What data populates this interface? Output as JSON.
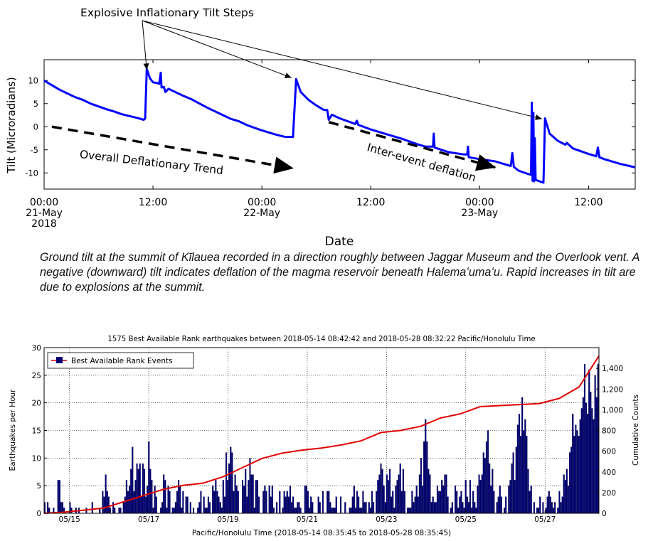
{
  "chart_data": [
    {
      "type": "line",
      "title": "",
      "xlabel": "Date",
      "ylabel": "Tilt (Microradians)",
      "ylim": [
        -13.5,
        14.5
      ],
      "yticks": [
        10,
        5,
        0,
        -5,
        -10
      ],
      "x_unit": "hours since 2018-05-21 00:00",
      "xlim": [
        0,
        38
      ],
      "xtick_labels": [
        {
          "x": 0,
          "lines": [
            "00:00",
            "21-May",
            "2018"
          ]
        },
        {
          "x": 7,
          "lines": [
            "12:00"
          ]
        },
        {
          "x": 14,
          "lines": [
            "00:00",
            "22-May"
          ]
        },
        {
          "x": 21,
          "lines": [
            "12:00"
          ]
        },
        {
          "x": 28,
          "lines": [
            "00:00",
            "23-May"
          ]
        },
        {
          "x": 35,
          "lines": [
            "12:00"
          ]
        }
      ],
      "series": [
        {
          "color": "#0000ff",
          "points": [
            [
              0.0,
              10.0
            ],
            [
              0.5,
              9.0
            ],
            [
              1.0,
              8.0
            ],
            [
              1.5,
              7.2
            ],
            [
              2.0,
              6.4
            ],
            [
              2.5,
              5.8
            ],
            [
              3.0,
              5.0
            ],
            [
              3.5,
              4.4
            ],
            [
              4.0,
              3.8
            ],
            [
              4.5,
              3.3
            ],
            [
              5.0,
              2.7
            ],
            [
              5.5,
              2.3
            ],
            [
              6.0,
              1.9
            ],
            [
              6.4,
              1.5
            ],
            [
              6.5,
              1.8
            ],
            [
              6.6,
              12.5
            ],
            [
              6.8,
              10.5
            ],
            [
              7.0,
              9.6
            ],
            [
              7.2,
              9.5
            ],
            [
              7.4,
              9.3
            ],
            [
              7.5,
              11.7
            ],
            [
              7.55,
              8.5
            ],
            [
              7.7,
              8.6
            ],
            [
              7.8,
              7.5
            ],
            [
              8.0,
              8.2
            ],
            [
              8.5,
              7.4
            ],
            [
              9.0,
              6.6
            ],
            [
              9.5,
              5.9
            ],
            [
              10.0,
              5.0
            ],
            [
              10.5,
              4.1
            ],
            [
              11.0,
              3.3
            ],
            [
              11.5,
              2.5
            ],
            [
              12.0,
              1.7
            ],
            [
              12.5,
              1.2
            ],
            [
              13.0,
              0.4
            ],
            [
              13.5,
              -0.2
            ],
            [
              14.0,
              -0.8
            ],
            [
              14.5,
              -1.3
            ],
            [
              15.0,
              -1.8
            ],
            [
              15.5,
              -2.2
            ],
            [
              16.0,
              -2.2
            ],
            [
              16.2,
              10.3
            ],
            [
              16.5,
              7.5
            ],
            [
              17.0,
              5.8
            ],
            [
              17.5,
              4.6
            ],
            [
              18.0,
              3.6
            ],
            [
              18.2,
              3.6
            ],
            [
              18.3,
              1.5
            ],
            [
              18.5,
              2.6
            ],
            [
              19.0,
              1.8
            ],
            [
              19.5,
              1.2
            ],
            [
              20.0,
              0.6
            ],
            [
              20.1,
              1.3
            ],
            [
              20.2,
              0.4
            ],
            [
              21.0,
              -0.6
            ],
            [
              22.0,
              -1.6
            ],
            [
              23.0,
              -2.6
            ],
            [
              24.0,
              -3.8
            ],
            [
              24.5,
              -4.3
            ],
            [
              25.0,
              -4.3
            ],
            [
              25.05,
              -1.5
            ],
            [
              25.1,
              -4.5
            ],
            [
              26.0,
              -5.5
            ],
            [
              27.0,
              -6.0
            ],
            [
              27.2,
              -6.0
            ],
            [
              27.25,
              -4.3
            ],
            [
              27.3,
              -6.6
            ],
            [
              28.0,
              -7.0
            ],
            [
              29.0,
              -7.5
            ],
            [
              29.5,
              -8.0
            ],
            [
              30.0,
              -8.5
            ],
            [
              30.1,
              -5.7
            ],
            [
              30.2,
              -8.7
            ],
            [
              30.5,
              -9.5
            ],
            [
              31.0,
              -10.1
            ],
            [
              31.3,
              -10.4
            ],
            [
              31.35,
              5.2
            ],
            [
              31.4,
              -11.7
            ],
            [
              31.45,
              3.0
            ],
            [
              31.5,
              -11.8
            ],
            [
              31.55,
              -2.5
            ],
            [
              31.6,
              -11.5
            ],
            [
              32.0,
              -12.0
            ],
            [
              32.1,
              -12.1
            ],
            [
              32.2,
              1.8
            ],
            [
              32.5,
              -1.5
            ],
            [
              33.0,
              -3.0
            ],
            [
              33.5,
              -3.9
            ],
            [
              33.6,
              -3.5
            ],
            [
              34.0,
              -4.7
            ],
            [
              35.0,
              -5.9
            ],
            [
              35.5,
              -6.4
            ],
            [
              35.6,
              -4.5
            ],
            [
              35.7,
              -6.6
            ],
            [
              36.0,
              -7.0
            ],
            [
              37.0,
              -8.0
            ],
            [
              38.0,
              -8.8
            ]
          ]
        }
      ],
      "annotations": [
        {
          "text": "Explosive Inflationary Tilt Steps",
          "targets": [
            [
              6.6,
              12.3
            ],
            [
              15.9,
              10.6
            ],
            [
              32.0,
              1.7
            ]
          ]
        },
        {
          "text": "Overall Deflationary Trend",
          "arrow_from": [
            0.5,
            0.0
          ],
          "arrow_to": [
            16.0,
            -9.0
          ],
          "angle": 6.5
        },
        {
          "text": "Inter-event deflation",
          "arrow_from": [
            18.3,
            1.0
          ],
          "arrow_to": [
            29.0,
            -8.8
          ],
          "angle": 16
        }
      ]
    },
    {
      "type": "bar",
      "title": "1575 Best Available Rank earthquakes between 2018-05-14 08:42:42 and 2018-05-28 08:32:22 Pacific/Honolulu Time",
      "xlabel": "Pacific/Honolulu Time (2018-05-14 08:35:45 to 2018-05-28 08:35:45)",
      "ylabel": "Earthquakes per Hour",
      "y2label": "Cumulative Counts",
      "ylim": [
        0,
        30
      ],
      "yticks": [
        0,
        5,
        10,
        15,
        20,
        25,
        30
      ],
      "y2lim": [
        0,
        1600
      ],
      "y2ticks": [
        0,
        200,
        400,
        600,
        800,
        1000,
        1200,
        1400
      ],
      "y2tick_labels": [
        "0",
        "200",
        "400",
        "600",
        "800",
        "1,000",
        "1,200",
        "1,400"
      ],
      "x_unit": "days since 2018-05-14 08:35:45",
      "xlim": [
        0,
        14
      ],
      "xtick_labels": [
        {
          "x": 0.64,
          "label": "05/15"
        },
        {
          "x": 2.64,
          "label": "05/17"
        },
        {
          "x": 4.64,
          "label": "05/19"
        },
        {
          "x": 6.64,
          "label": "05/21"
        },
        {
          "x": 8.64,
          "label": "05/23"
        },
        {
          "x": 10.64,
          "label": "05/25"
        },
        {
          "x": 12.64,
          "label": "05/27"
        }
      ],
      "grid": true,
      "legend": {
        "position": "top-left",
        "label": "Best Available Rank Events"
      },
      "series": [
        {
          "name": "Best Available Rank Events",
          "color": "#000070",
          "kind": "bar"
        },
        {
          "name": "Cumulative Counts",
          "color": "#e00000",
          "kind": "line",
          "axis": "right"
        }
      ],
      "hourly_counts": [
        2,
        0,
        2,
        1,
        0,
        0,
        1,
        0,
        0,
        6,
        6,
        2,
        2,
        1,
        0,
        0,
        0,
        2,
        1,
        0,
        0,
        1,
        0,
        1,
        0,
        0,
        0,
        0,
        1,
        0,
        0,
        0,
        2,
        0,
        0,
        0,
        0,
        1,
        0,
        4,
        3,
        7,
        4,
        3,
        1,
        0,
        2,
        1,
        0,
        0,
        1,
        1,
        0,
        2,
        3,
        6,
        4,
        5,
        8,
        12,
        4,
        6,
        9,
        8,
        9,
        3,
        9,
        8,
        3,
        5,
        13,
        8,
        6,
        1,
        5,
        3,
        0,
        0,
        1,
        2,
        7,
        6,
        1,
        5,
        4,
        0,
        1,
        1,
        2,
        4,
        6,
        5,
        1,
        4,
        0,
        3,
        3,
        0,
        2,
        0,
        1,
        0,
        0,
        1,
        2,
        4,
        0,
        3,
        1,
        1,
        3,
        2,
        0,
        5,
        4,
        6,
        4,
        3,
        2,
        1,
        6,
        3,
        11,
        6,
        9,
        12,
        11,
        4,
        7,
        5,
        4,
        0,
        0,
        6,
        5,
        8,
        3,
        6,
        10,
        7,
        7,
        1,
        6,
        6,
        3,
        0,
        0,
        4,
        5,
        4,
        0,
        5,
        3,
        5,
        1,
        0,
        2,
        0,
        4,
        0,
        1,
        4,
        3,
        4,
        3,
        5,
        2,
        3,
        1,
        1,
        2,
        2,
        1,
        0,
        0,
        5,
        5,
        4,
        1,
        3,
        2,
        0,
        0,
        0,
        3,
        2,
        0,
        4,
        0,
        0,
        4,
        4,
        2,
        1,
        1,
        1,
        3,
        0,
        0,
        3,
        0,
        0,
        2,
        0,
        0,
        1,
        1,
        3,
        5,
        1,
        4,
        3,
        1,
        1,
        4,
        2,
        2,
        0,
        2,
        1,
        4,
        2,
        0,
        4,
        6,
        7,
        9,
        8,
        5,
        2,
        7,
        6,
        8,
        3,
        4,
        1,
        5,
        6,
        7,
        9,
        4,
        8,
        4,
        0,
        1,
        1,
        1,
        4,
        2,
        3,
        5,
        3,
        7,
        10,
        5,
        13,
        17,
        13,
        8,
        7,
        2,
        3,
        2,
        2,
        5,
        4,
        4,
        6,
        5,
        7,
        7,
        3,
        0,
        1,
        2,
        0,
        5,
        4,
        1,
        3,
        4,
        2,
        1,
        6,
        3,
        2,
        6,
        1,
        4,
        2,
        1,
        5,
        7,
        6,
        7,
        11,
        10,
        13,
        15,
        9,
        5,
        8,
        4,
        0,
        2,
        3,
        5,
        3,
        0,
        1,
        3,
        0,
        5,
        6,
        9,
        11,
        6,
        12,
        16,
        18,
        14,
        21,
        15,
        17,
        14,
        8,
        4,
        5,
        0,
        2,
        0,
        1,
        1,
        3,
        0,
        2,
        0,
        1,
        3,
        4,
        3,
        2,
        1,
        2,
        0,
        1,
        4,
        2,
        3,
        7,
        6,
        8,
        5,
        11,
        12,
        18,
        14,
        16,
        15,
        14,
        17,
        19,
        21,
        27,
        20,
        18,
        26,
        22,
        19,
        17,
        25,
        21,
        27
      ],
      "cumulative": [
        [
          0.0,
          0
        ],
        [
          0.5,
          10
        ],
        [
          1.0,
          30
        ],
        [
          1.5,
          50
        ],
        [
          2.0,
          110
        ],
        [
          2.5,
          170
        ],
        [
          3.0,
          230
        ],
        [
          3.5,
          270
        ],
        [
          4.0,
          290
        ],
        [
          4.5,
          350
        ],
        [
          5.0,
          440
        ],
        [
          5.5,
          530
        ],
        [
          6.0,
          580
        ],
        [
          6.5,
          610
        ],
        [
          7.0,
          630
        ],
        [
          7.5,
          660
        ],
        [
          8.0,
          700
        ],
        [
          8.5,
          780
        ],
        [
          9.0,
          800
        ],
        [
          9.5,
          840
        ],
        [
          10.0,
          920
        ],
        [
          10.5,
          960
        ],
        [
          11.0,
          1030
        ],
        [
          11.5,
          1040
        ],
        [
          12.0,
          1050
        ],
        [
          12.5,
          1060
        ],
        [
          13.0,
          1110
        ],
        [
          13.5,
          1220
        ],
        [
          14.0,
          1520
        ]
      ]
    }
  ],
  "caption": "Ground tilt at the summit of Kīlauea recorded in a direction roughly between Jaggar Museum and the Overlook vent. A negative (downward) tilt indicates deflation of the magma reservoir beneath Halemaʻumaʻu. Rapid increases in tilt are due to explosions at the summit."
}
